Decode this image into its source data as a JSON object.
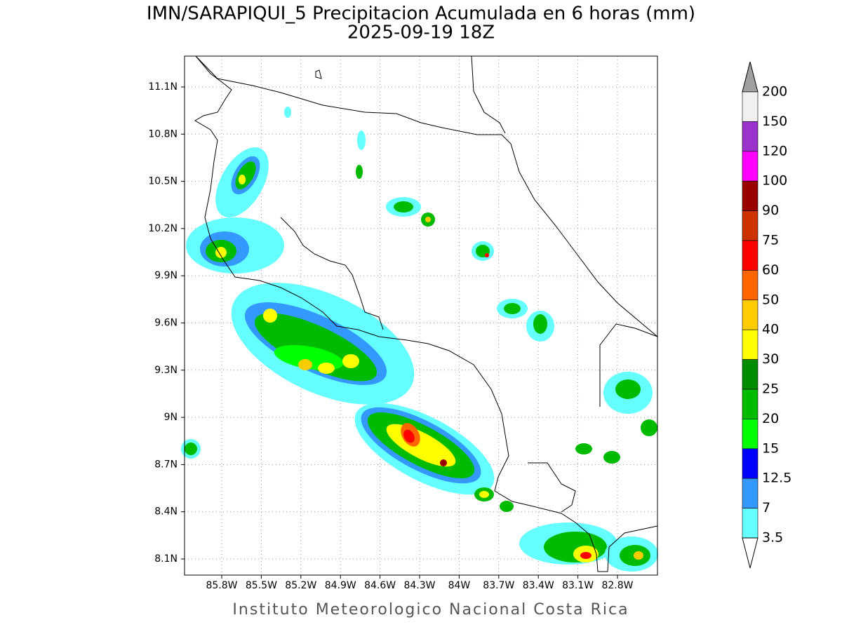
{
  "header": {
    "title": "IMN/SARAPIQUI_5 Precipitacion Acumulada en 6 horas (mm)",
    "subtitle": "2025-09-19 18Z"
  },
  "map": {
    "lat_labels": [
      "11.1N",
      "10.8N",
      "10.5N",
      "10.2N",
      "9.9N",
      "9.6N",
      "9.3N",
      "9N",
      "8.7N",
      "8.4N",
      "8.1N"
    ],
    "lon_labels": [
      "85.8W",
      "85.5W",
      "85.2W",
      "84.9W",
      "84.6W",
      "84.3W",
      "84W",
      "83.7W",
      "83.4W",
      "83.1W",
      "82.8W"
    ]
  },
  "colorbar": {
    "levels": [
      "200",
      "150",
      "120",
      "100",
      "90",
      "75",
      "60",
      "50",
      "40",
      "30",
      "25",
      "20",
      "15",
      "12.5",
      "7",
      "3.5"
    ],
    "colors": [
      "#f0f0f0",
      "#9933cc",
      "#ff00ff",
      "#990000",
      "#cc3300",
      "#ff0000",
      "#ff6600",
      "#ffcc00",
      "#ffff00",
      "#008c00",
      "#00bb00",
      "#00ff00",
      "#0000ff",
      "#3399ff",
      "#66ffff"
    ],
    "top_color": "#a0a0a0",
    "bottom_color": "#ffffff"
  },
  "footer": "Instituto Meteorologico Nacional Costa Rica"
}
